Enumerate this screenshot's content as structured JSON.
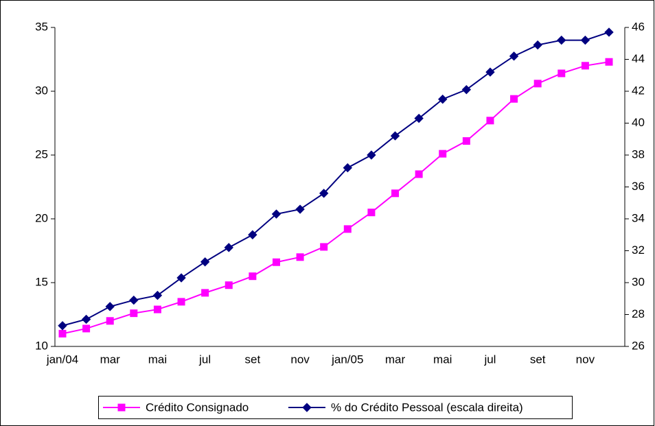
{
  "chart_data": {
    "type": "line",
    "categories": [
      "jan/04",
      null,
      "mar",
      null,
      "mai",
      null,
      "jul",
      null,
      "set",
      null,
      "nov",
      null,
      "jan/05",
      null,
      "mar",
      null,
      "mai",
      null,
      "jul",
      null,
      "set",
      null,
      "nov",
      null
    ],
    "series": [
      {
        "name": "Crédito Consignado",
        "color": "#ff00ff",
        "marker": "square",
        "values": [
          11.0,
          11.4,
          12.0,
          12.6,
          12.9,
          13.5,
          14.2,
          14.8,
          15.5,
          16.6,
          17.0,
          17.8,
          19.2,
          20.5,
          22.0,
          23.5,
          25.1,
          26.1,
          27.7,
          29.4,
          30.6,
          31.4,
          32.0,
          32.3
        ]
      },
      {
        "name": "% do Crédito Pessoal (escala direita)",
        "color": "#000080",
        "marker": "diamond",
        "axis": "y2",
        "values": [
          27.3,
          27.7,
          28.5,
          28.9,
          29.2,
          30.3,
          31.3,
          32.2,
          33.0,
          34.3,
          34.6,
          35.6,
          37.2,
          38.0,
          39.2,
          40.3,
          41.5,
          42.1,
          43.2,
          44.2,
          44.9,
          45.2,
          45.2,
          45.7
        ]
      }
    ],
    "ylim": [
      10,
      35
    ],
    "yticks": [
      10,
      15,
      20,
      25,
      30,
      35
    ],
    "y2lim": [
      26,
      46
    ],
    "y2ticks": [
      26,
      28,
      30,
      32,
      34,
      36,
      38,
      40,
      42,
      44,
      46
    ],
    "grid": false
  }
}
